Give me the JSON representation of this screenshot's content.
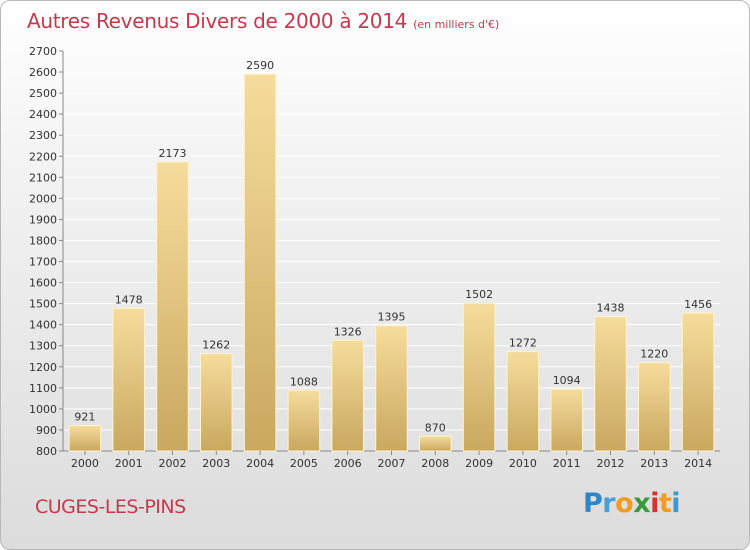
{
  "header": {
    "title": "Autres Revenus Divers de 2000 à 2014",
    "unit": "(en milliers d'€)"
  },
  "footer": {
    "location": "CUGES-LES-PINS",
    "brand": "Proxiti",
    "brand_letters": [
      {
        "ch": "P",
        "color": "#2e86c8"
      },
      {
        "ch": "r",
        "color": "#4a9fd6"
      },
      {
        "ch": "o",
        "color": "#f29b1c"
      },
      {
        "ch": "x",
        "color": "#3a9a3a"
      },
      {
        "ch": "i",
        "color": "#d6332e"
      },
      {
        "ch": "t",
        "color": "#f29b1c"
      },
      {
        "ch": "i",
        "color": "#3a9ad6"
      }
    ]
  },
  "chart_data": {
    "type": "bar",
    "title": "Autres Revenus Divers de 2000 à 2014",
    "categories": [
      "2000",
      "2001",
      "2002",
      "2003",
      "2004",
      "2005",
      "2006",
      "2007",
      "2008",
      "2009",
      "2010",
      "2011",
      "2012",
      "2013",
      "2014"
    ],
    "values": [
      921,
      1478,
      2173,
      1262,
      2590,
      1088,
      1326,
      1395,
      870,
      1502,
      1272,
      1094,
      1438,
      1220,
      1456
    ],
    "ylim": [
      800,
      2700
    ],
    "ytick_step": 100,
    "grid": true,
    "legend": "none",
    "colors": {
      "bar_light": "#f6dc9c",
      "bar_dark": "#c9a85f",
      "title": "#c8384a"
    }
  }
}
